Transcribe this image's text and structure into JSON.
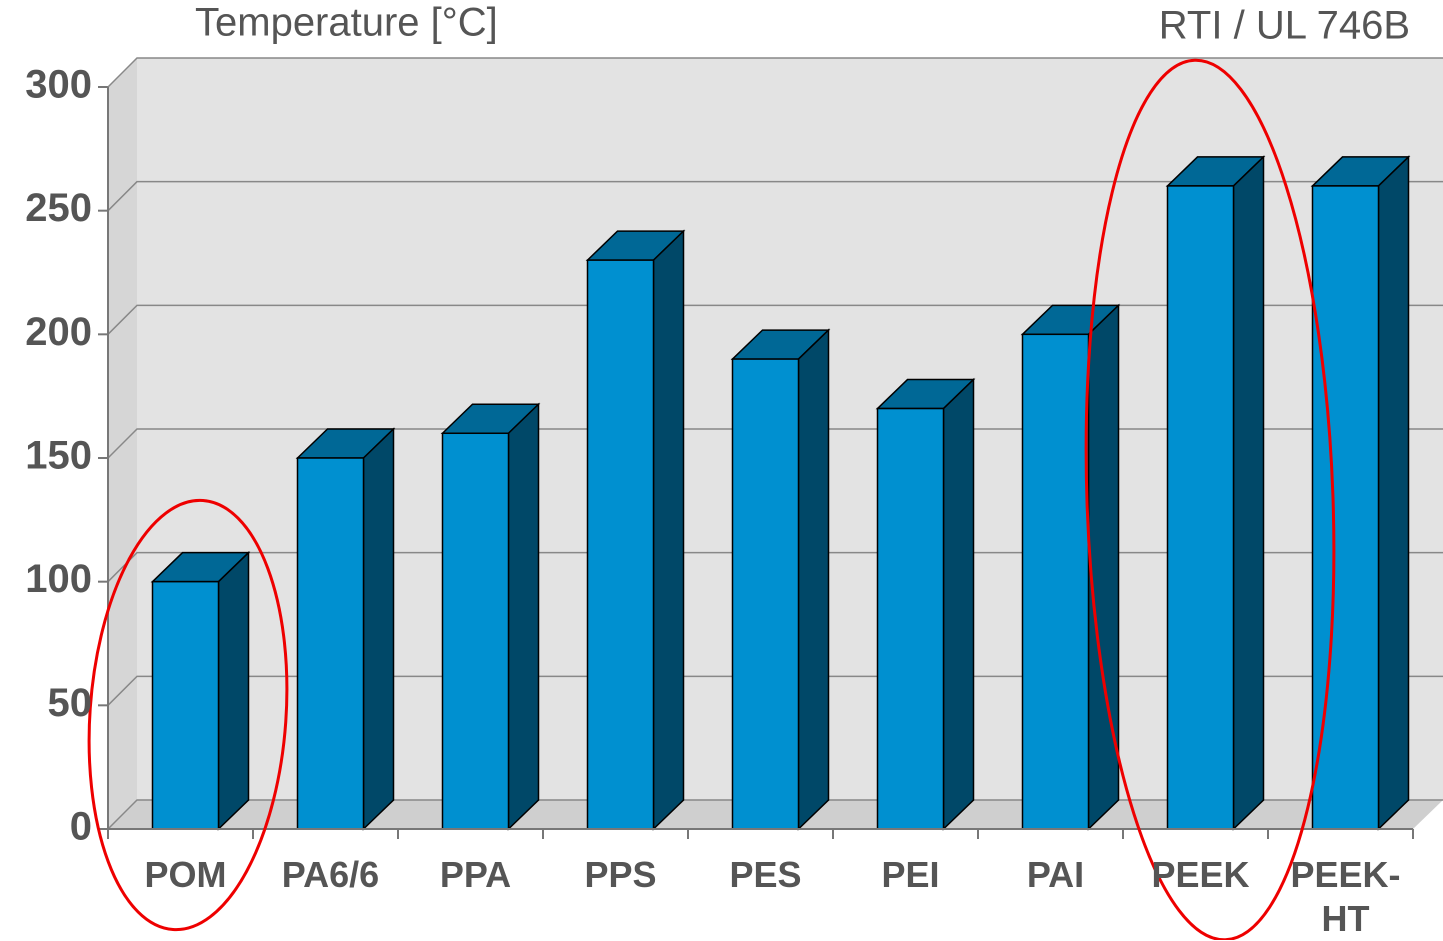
{
  "chart_data": {
    "type": "bar3d",
    "title": "Temperature [°C]",
    "subtitle": "RTI / UL 746B",
    "categories": [
      "POM",
      "PA6/6",
      "PPA",
      "PPS",
      "PES",
      "PEI",
      "PAI",
      "PEEK",
      "PEEK-HT"
    ],
    "values": [
      100,
      150,
      160,
      230,
      190,
      170,
      200,
      260,
      260
    ],
    "color": "#0090d0",
    "ylim": [
      0,
      300
    ],
    "yticks": [
      0,
      50,
      100,
      150,
      200,
      250,
      300
    ],
    "grid": true
  }
}
